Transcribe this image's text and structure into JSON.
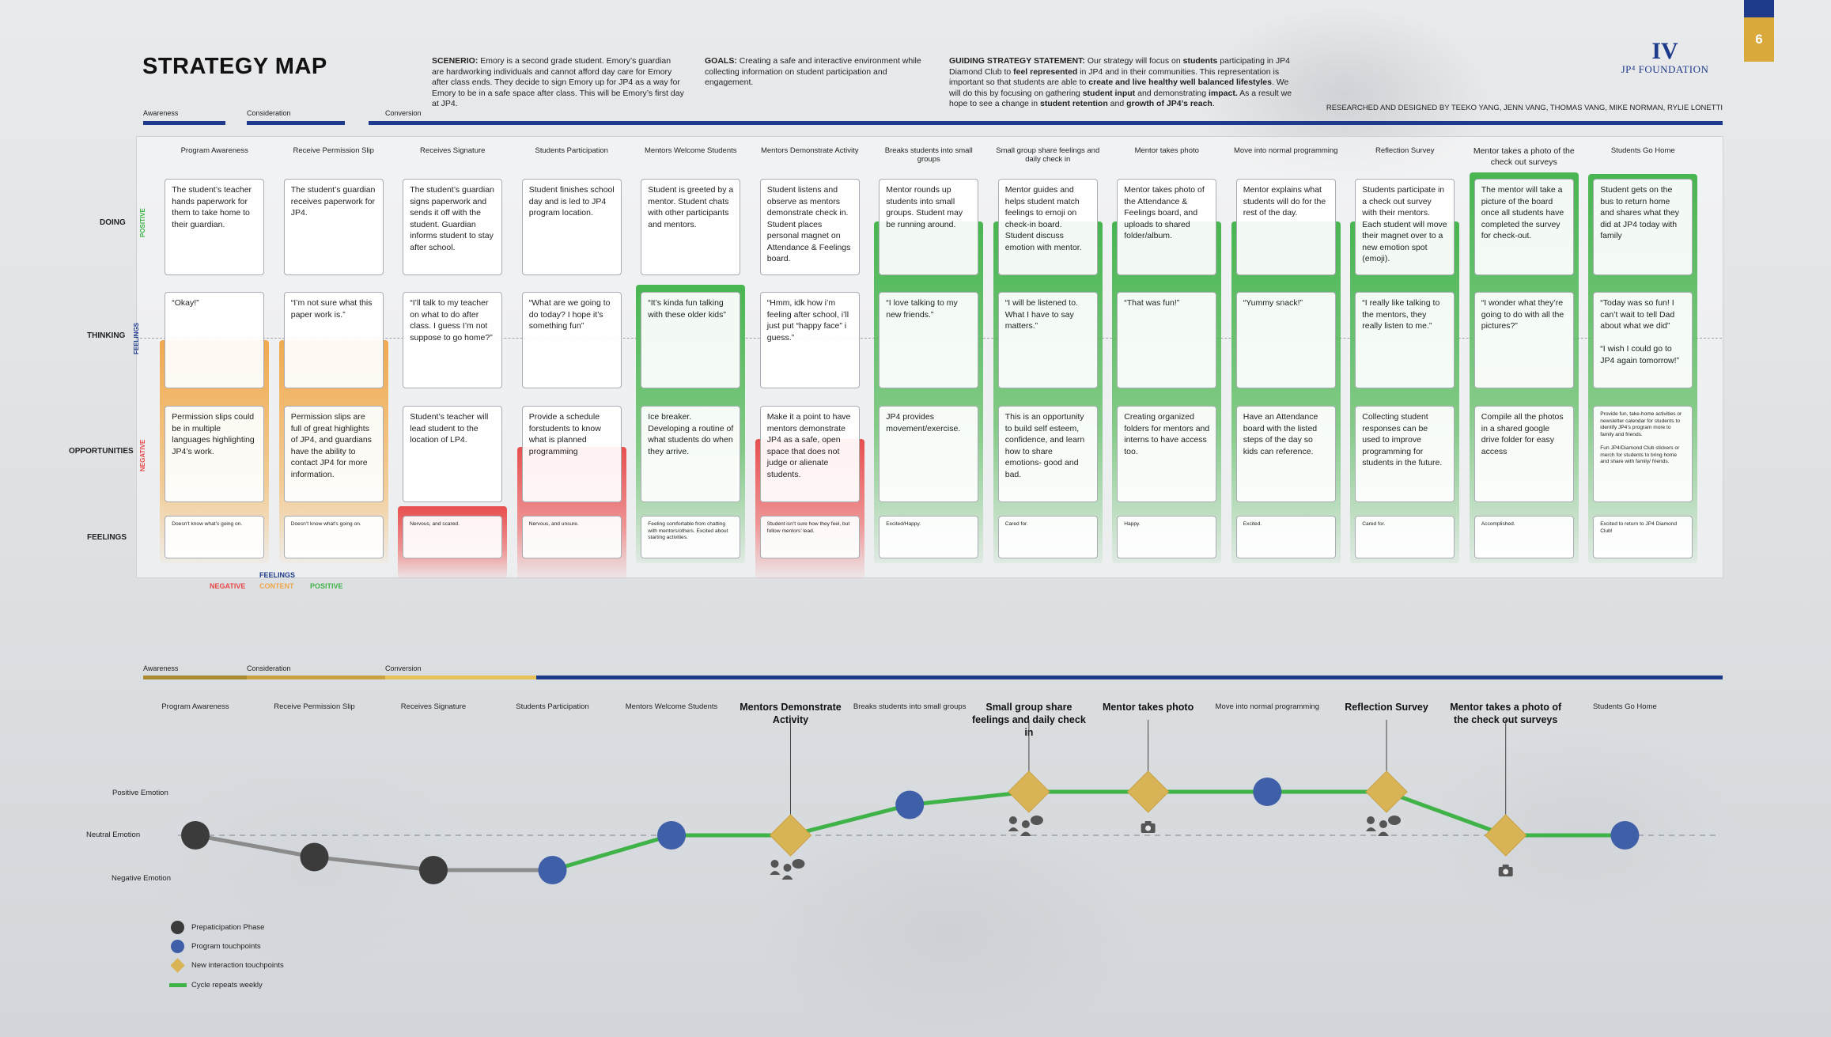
{
  "header": {
    "title": "STRATEGY MAP",
    "scenario_label": "SCENERIO:",
    "scenario_text": "Emory is a second grade student. Emory’s guardian are hardworking individuals and cannot afford day care for Emory after class ends. They decide to sign Emory up for JP4 as a way for Emory to be in a safe space after class. This will be Emory’s first day at JP4.",
    "goals_label": "GOALS:",
    "goals_text": "Creating a safe and interactive environment while collecting information on student participation and engagement.",
    "strategy_label": "GUIDING STRATEGY STATEMENT:",
    "strategy_parts": [
      [
        "Our strategy will focus on ",
        false
      ],
      [
        "students",
        true
      ],
      [
        " participating in JP4 Diamond Club to ",
        false
      ],
      [
        "feel represented",
        true
      ],
      [
        " in JP4 and in their communities. This representation is important so that students are able to ",
        false
      ],
      [
        "create and live healthy well balanced lifestyles",
        true
      ],
      [
        ". We will do this by focusing on gathering ",
        false
      ],
      [
        "student input",
        true
      ],
      [
        " and demonstrating ",
        false
      ],
      [
        "impact.",
        true
      ],
      [
        " As a result we hope to see a change in ",
        false
      ],
      [
        "student retention",
        true
      ],
      [
        " and ",
        false
      ],
      [
        "growth of JP4’s reach",
        true
      ],
      [
        ".",
        false
      ]
    ],
    "credits": "RESEARCHED AND DESIGNED BY TEEKO YANG, JENN VANG, THOMAS VANG, MIKE NORMAN, RYLIE LONETTI",
    "logo_mark": "IV",
    "logo_text": "JP⁴ FOUNDATION",
    "page_number": "6"
  },
  "phases": {
    "awareness": "Awareness",
    "consideration": "Consideration",
    "conversion": "Conversion"
  },
  "row_labels": {
    "doing": "DOING",
    "thinking": "THINKING",
    "opportunities": "OPPORTUNITIES",
    "feelings": "FEELINGS",
    "positive": "POSITIVE",
    "negative": "NEGATIVE",
    "feelings_axis": "FEELINGS"
  },
  "legend": {
    "title": "FEELINGS",
    "negative": "NEGATIVE",
    "content": "CONTENT",
    "positive": "POSITIVE"
  },
  "colors": {
    "green": "#3fb248",
    "orange": "#f0a546",
    "red": "#e84646",
    "navy": "#1e3a8a",
    "gold": "#d9b457",
    "gray_dot": "#3b3b3b",
    "blue_dot": "#3f5fa8"
  },
  "columns": [
    {
      "header": "Program Awareness",
      "doing": "The student’s teacher hands paperwork for them to take home to their guardian.",
      "thinking": "“Okay!”",
      "opportunities": "Permission slips could be in multiple languages highlighting JP4’s work.",
      "feelings": "Doesn’t know what’s going on.",
      "tone": "content"
    },
    {
      "header": "Receive Permission Slip",
      "doing": "The student’s guardian receives paperwork for JP4.",
      "thinking": "“I’m not sure what this paper work is.”",
      "opportunities": "Permission slips are full of great highlights of JP4, and guardians have the ability to contact JP4 for more information.",
      "feelings": "Doesn’t know what’s going on.",
      "tone": "content"
    },
    {
      "header": "Receives Signature",
      "doing": "The student’s guardian signs paperwork and sends it off with the student. Guardian informs student to stay after school.",
      "thinking": "“I’ll talk to my teacher on what to do after class. I guess I’m not suppose to go home?”",
      "opportunities": "Student’s teacher will lead student to the location of LP4.",
      "feelings": "Nervous, and scared.",
      "tone": "negative"
    },
    {
      "header": "Students Participation",
      "doing": "Student finishes school day and is led to JP4 program location.",
      "thinking": "“What are we going to do today? I hope it’s something fun”",
      "opportunities": "Provide a schedule forstudents to know what is planned programming",
      "feelings": "Nervous, and unsure.",
      "tone": "negative"
    },
    {
      "header": "Mentors Welcome Students",
      "doing": "Student is greeted by a mentor. Student chats with other participants and mentors.",
      "thinking": "“It’s kinda fun talking with these older kids”",
      "opportunities": "Ice breaker. Developing a routine of what students do when they arrive.",
      "feelings": "Feeling comfortable from chatting with mentors/others. Excited about starting activities.",
      "tone": "positive"
    },
    {
      "header": "Mentors Demonstrate Activity",
      "doing": "Student listens and observe as mentors demonstrate check in. Student places personal magnet on Attendance & Feelings board.",
      "thinking": "“Hmm, idk how i’m feeling after school, i’ll just put “happy face” i guess.”",
      "opportunities": "Make it a point to have mentors demonstrate JP4 as a safe, open space that does not judge or alienate students.",
      "feelings": "Student isn’t sure how they feel, but follow mentors’ lead.",
      "tone": "negative"
    },
    {
      "header": "Breaks students into small groups",
      "doing": "Mentor rounds up students into small groups. Student may be running around.",
      "thinking": "“I love talking to my new friends.”",
      "opportunities": "JP4 provides movement/exercise.",
      "feelings": "Excited/Happy.",
      "tone": "positive"
    },
    {
      "header": "Small group share feelings and daily check in",
      "doing": "Mentor guides and helps student match feelings to emoji on check-in board. Student discuss emotion with mentor.",
      "thinking": "“I will be listened to. What I have to say matters.”",
      "opportunities": "This is an opportunity to build self esteem, confidence, and learn how to share emotions- good and bad.",
      "feelings": "Cared for.",
      "tone": "positive"
    },
    {
      "header": "Mentor takes photo",
      "doing": "Mentor takes photo of the Attendance & Feelings board, and uploads to shared folder/album.",
      "thinking": "“That was fun!”",
      "opportunities": "Creating organized folders for mentors and interns to have access too.",
      "feelings": "Happy.",
      "tone": "positive"
    },
    {
      "header": "Move into normal programming",
      "doing": "Mentor explains what students will do for the rest of the day.",
      "thinking": "“Yummy snack!”",
      "opportunities": "Have an Attendance board with the listed steps of the day so kids can reference.",
      "feelings": "Excited.",
      "tone": "positive"
    },
    {
      "header": "Reflection Survey",
      "doing": "Students participate in a check out survey with their mentors. Each student will move their magnet over to a new emotion spot (emoji).",
      "thinking": "“I really like talking to the mentors, they really listen to me.”",
      "opportunities": "Collecting student responses can be used to improve programming for students in the future.",
      "feelings": "Cared for.",
      "tone": "positive"
    },
    {
      "header": "Mentor takes a photo of the check out surveys",
      "doing": "The mentor will take a picture of the board once all students have completed the survey for check-out.",
      "thinking": "“I wonder what they’re going to do with all the pictures?”",
      "opportunities": "Compile all the photos in a shared google drive folder for easy access",
      "feelings": "Accomplished.",
      "tone": "positive"
    },
    {
      "header": "Students Go Home",
      "doing": "Student gets on the bus to return home and shares what they did at JP4 today with family",
      "thinking": "“Today was so fun! I can’t wait to tell Dad about what we did”\n\n“I wish I could go to JP4 again tomorrow!”",
      "opportunities": "Provide fun, take-home activities or newsletter calendar for students to identify JP4’s program more to family and friends.\n\nFun JP4/Diamond Club stickers or merch for students to bring home and share with family/ friends.",
      "feelings": "Excited to return to JP4 Diamond Club!",
      "tone": "positive"
    }
  ],
  "journey": {
    "emotion_labels": {
      "positive": "Positive Emotion",
      "neutral": "Neutral Emotion",
      "negative": "Negative Emotion"
    },
    "stages": [
      {
        "label": "Program Awareness",
        "kind": "prep",
        "emotion": 0.0,
        "highlight": false,
        "icon": ""
      },
      {
        "label": "Receive Permission Slip",
        "kind": "prep",
        "emotion": -0.25,
        "highlight": false,
        "icon": ""
      },
      {
        "label": "Receives Signature",
        "kind": "prep",
        "emotion": -0.4,
        "highlight": false,
        "icon": ""
      },
      {
        "label": "Students Participation",
        "kind": "program",
        "emotion": -0.4,
        "highlight": false,
        "icon": ""
      },
      {
        "label": "Mentors Welcome Students",
        "kind": "program",
        "emotion": 0.0,
        "highlight": false,
        "icon": ""
      },
      {
        "label": "Mentors Demonstrate Activity",
        "kind": "new",
        "emotion": 0.0,
        "highlight": true,
        "icon": "people-chat-icon"
      },
      {
        "label": "Breaks students into small groups",
        "kind": "program",
        "emotion": 0.35,
        "highlight": false,
        "icon": ""
      },
      {
        "label": "Small group share feelings and daily check in",
        "kind": "new",
        "emotion": 0.5,
        "highlight": true,
        "icon": "people-chat-icon"
      },
      {
        "label": "Mentor takes photo",
        "kind": "new",
        "emotion": 0.5,
        "highlight": true,
        "icon": "camera-icon"
      },
      {
        "label": "Move into normal programming",
        "kind": "program",
        "emotion": 0.5,
        "highlight": false,
        "icon": ""
      },
      {
        "label": "Reflection Survey",
        "kind": "new",
        "emotion": 0.5,
        "highlight": true,
        "icon": "people-chat-icon"
      },
      {
        "label": "Mentor takes a photo of the check out surveys",
        "kind": "new",
        "emotion": 0.0,
        "highlight": true,
        "icon": "camera-icon"
      },
      {
        "label": "Students Go Home",
        "kind": "program",
        "emotion": 0.0,
        "highlight": false,
        "icon": ""
      }
    ],
    "legend": {
      "prep": "Prepaticipation Phase",
      "program": "Program touchpoints",
      "new": "New interaction touchpoints",
      "cycle": "Cycle repeats weekly"
    }
  }
}
